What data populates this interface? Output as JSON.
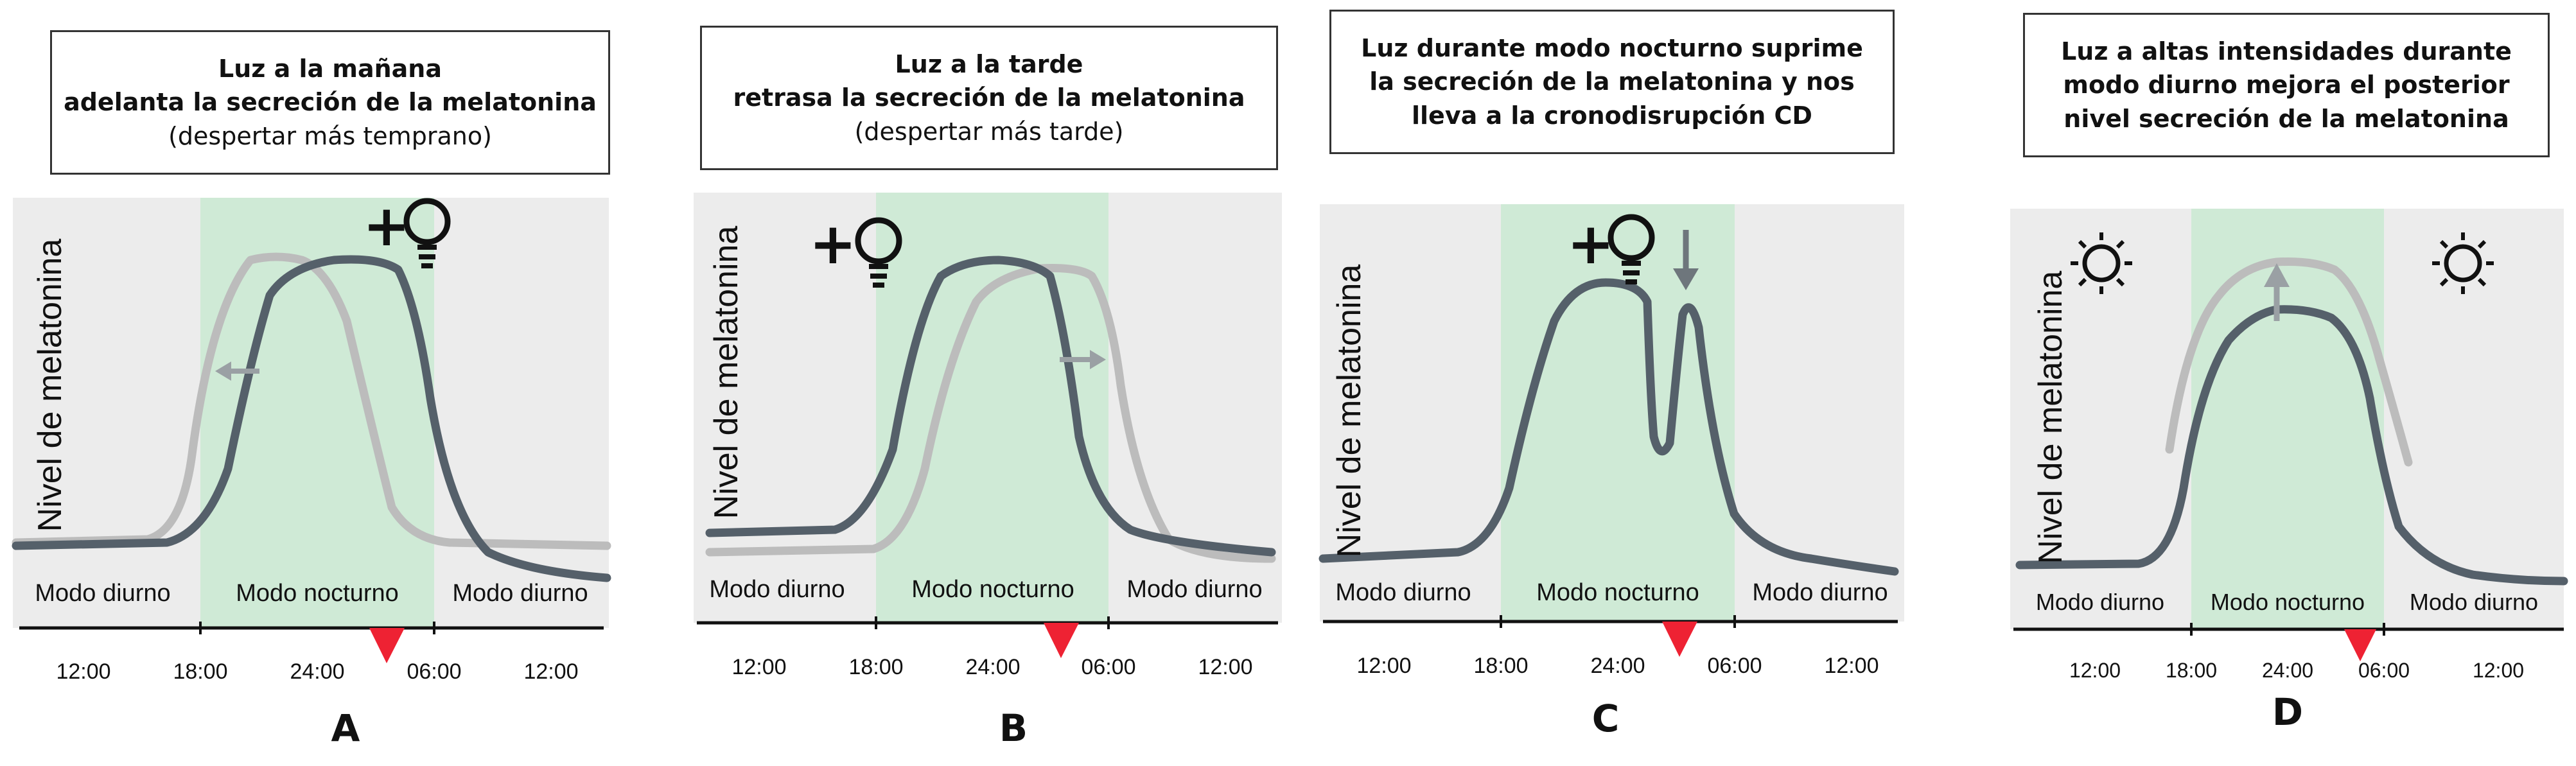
{
  "panels": [
    {
      "letter": "A",
      "caption": [
        "Luz a la mañana",
        "adelanta la secreción de la melatonina",
        "(despertar más temprano)"
      ],
      "caption_bold": [
        true,
        true,
        false
      ],
      "ylabel": "Nivel de melatonina",
      "modes": [
        "Modo diurno",
        "Modo nocturno",
        "Modo diurno"
      ],
      "ticks": [
        "12:00",
        "18:00",
        "24:00",
        "06:00",
        "12:00"
      ],
      "icons": [
        "plus-bulb",
        "arrow-left"
      ]
    },
    {
      "letter": "B",
      "caption": [
        "Luz a la tarde",
        "retrasa la secreción de la melatonina",
        "(despertar más tarde)"
      ],
      "caption_bold": [
        true,
        true,
        false
      ],
      "ylabel": "Nivel de melatonina",
      "modes": [
        "Modo diurno",
        "Modo nocturno",
        "Modo diurno"
      ],
      "ticks": [
        "12:00",
        "18:00",
        "24:00",
        "06:00",
        "12:00"
      ],
      "icons": [
        "plus-bulb",
        "arrow-right"
      ]
    },
    {
      "letter": "C",
      "caption": [
        "Luz  durante modo nocturno suprime",
        "la secreción de la melatonina y nos",
        "lleva a la cronodisrupción CD"
      ],
      "caption_bold": [
        true,
        true,
        true
      ],
      "ylabel": "Nivel de melatonina",
      "modes": [
        "Modo diurno",
        "Modo nocturno",
        "Modo diurno"
      ],
      "ticks": [
        "12:00",
        "18:00",
        "24:00",
        "06:00",
        "12:00"
      ],
      "icons": [
        "plus-bulb",
        "arrow-down"
      ]
    },
    {
      "letter": "D",
      "caption": [
        "Luz a altas intensidades durante",
        "modo diurno mejora el posterior",
        "nivel secreción de la melatonina"
      ],
      "caption_bold": [
        true,
        true,
        true
      ],
      "ylabel": "Nivel de melatonina",
      "modes": [
        "Modo diurno",
        "Modo nocturno",
        "Modo diurno"
      ],
      "ticks": [
        "12:00",
        "18:00",
        "24:00",
        "06:00",
        "12:00"
      ],
      "icons": [
        "sun",
        "sun",
        "arrow-up"
      ]
    }
  ],
  "colors": {
    "day_band": "#ececec",
    "night_band": "#cfead6",
    "main_curve": "#55606a",
    "shifted_curve": "#bcbcbc",
    "marker": "#ee2233",
    "axis": "#111111"
  }
}
